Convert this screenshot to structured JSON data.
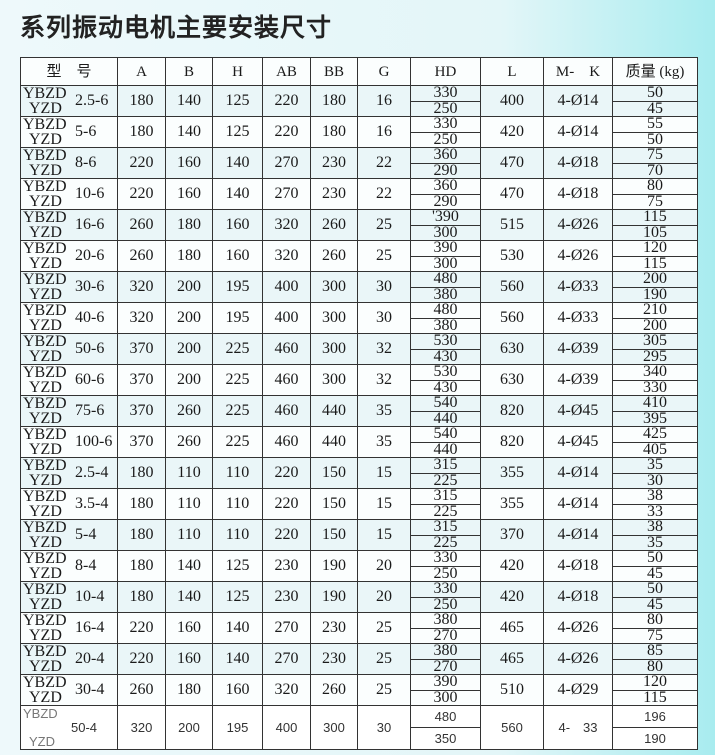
{
  "title": "系列振动电机主要安装尺寸",
  "headers": [
    "型　号",
    "A",
    "B",
    "H",
    "AB",
    "BB",
    "G",
    "HD",
    "L",
    "M-　K",
    "质量 (kg)"
  ],
  "rows": [
    {
      "p1": "YBZD",
      "p2": "YZD",
      "size": "2.5-6",
      "A": "180",
      "B": "140",
      "H": "125",
      "AB": "220",
      "BB": "180",
      "G": "16",
      "HD": [
        "330",
        "250"
      ],
      "L": "400",
      "MK": "4-Ø14",
      "mass": [
        "50",
        "45"
      ]
    },
    {
      "p1": "YBZD",
      "p2": "YZD",
      "size": "5-6",
      "A": "180",
      "B": "140",
      "H": "125",
      "AB": "220",
      "BB": "180",
      "G": "16",
      "HD": [
        "330",
        "250"
      ],
      "L": "420",
      "MK": "4-Ø14",
      "mass": [
        "55",
        "50"
      ]
    },
    {
      "p1": "YBZD",
      "p2": "YZD",
      "size": "8-6",
      "A": "220",
      "B": "160",
      "H": "140",
      "AB": "270",
      "BB": "230",
      "G": "22",
      "HD": [
        "360",
        "290"
      ],
      "L": "470",
      "MK": "4-Ø18",
      "mass": [
        "75",
        "70"
      ]
    },
    {
      "p1": "YBZD",
      "p2": "YZD",
      "size": "10-6",
      "A": "220",
      "B": "160",
      "H": "140",
      "AB": "270",
      "BB": "230",
      "G": "22",
      "HD": [
        "360",
        "290"
      ],
      "L": "470",
      "MK": "4-Ø18",
      "mass": [
        "80",
        "75"
      ]
    },
    {
      "p1": "YBZD",
      "p2": "YZD",
      "size": "16-6",
      "A": "260",
      "B": "180",
      "H": "160",
      "AB": "320",
      "BB": "260",
      "G": "25",
      "HD": [
        "'390",
        "300"
      ],
      "L": "515",
      "MK": "4-Ø26",
      "mass": [
        "115",
        "105"
      ]
    },
    {
      "p1": "YBZD",
      "p2": "YZD",
      "size": "20-6",
      "A": "260",
      "B": "180",
      "H": "160",
      "AB": "320",
      "BB": "260",
      "G": "25",
      "HD": [
        "390",
        "300"
      ],
      "L": "530",
      "MK": "4-Ø26",
      "mass": [
        "120",
        "115"
      ]
    },
    {
      "p1": "YBZD",
      "p2": "YZD",
      "size": "30-6",
      "A": "320",
      "B": "200",
      "H": "195",
      "AB": "400",
      "BB": "300",
      "G": "30",
      "HD": [
        "480",
        "380"
      ],
      "L": "560",
      "MK": "4-Ø33",
      "mass": [
        "200",
        "190"
      ]
    },
    {
      "p1": "YBZD",
      "p2": "YZD",
      "size": "40-6",
      "A": "320",
      "B": "200",
      "H": "195",
      "AB": "400",
      "BB": "300",
      "G": "30",
      "HD": [
        "480",
        "380"
      ],
      "L": "560",
      "MK": "4-Ø33",
      "mass": [
        "210",
        "200"
      ]
    },
    {
      "p1": "YBZD",
      "p2": "YZD",
      "size": "50-6",
      "A": "370",
      "B": "200",
      "H": "225",
      "AB": "460",
      "BB": "300",
      "G": "32",
      "HD": [
        "530",
        "430"
      ],
      "L": "630",
      "MK": "4-Ø39",
      "mass": [
        "305",
        "295"
      ]
    },
    {
      "p1": "YBZD",
      "p2": "YZD",
      "size": "60-6",
      "A": "370",
      "B": "200",
      "H": "225",
      "AB": "460",
      "BB": "300",
      "G": "32",
      "HD": [
        "530",
        "430"
      ],
      "L": "630",
      "MK": "4-Ø39",
      "mass": [
        "340",
        "330"
      ]
    },
    {
      "p1": "YBZD",
      "p2": "YZD",
      "size": "75-6",
      "A": "370",
      "B": "260",
      "H": "225",
      "AB": "460",
      "BB": "440",
      "G": "35",
      "HD": [
        "540",
        "440"
      ],
      "L": "820",
      "MK": "4-Ø45",
      "mass": [
        "410",
        "395"
      ]
    },
    {
      "p1": "YBZD",
      "p2": "YZD",
      "size": "100-6",
      "A": "370",
      "B": "260",
      "H": "225",
      "AB": "460",
      "BB": "440",
      "G": "35",
      "HD": [
        "540",
        "440"
      ],
      "L": "820",
      "MK": "4-Ø45",
      "mass": [
        "425",
        "405"
      ]
    },
    {
      "p1": "YBZD",
      "p2": "YZD",
      "size": "2.5-4",
      "A": "180",
      "B": "110",
      "H": "110",
      "AB": "220",
      "BB": "150",
      "G": "15",
      "HD": [
        "315",
        "225"
      ],
      "L": "355",
      "MK": "4-Ø14",
      "mass": [
        "35",
        "30"
      ]
    },
    {
      "p1": "YBZD",
      "p2": "YZD",
      "size": "3.5-4",
      "A": "180",
      "B": "110",
      "H": "110",
      "AB": "220",
      "BB": "150",
      "G": "15",
      "HD": [
        "315",
        "225"
      ],
      "L": "355",
      "MK": "4-Ø14",
      "mass": [
        "38",
        "33"
      ]
    },
    {
      "p1": "YBZD",
      "p2": "YZD",
      "size": "5-4",
      "A": "180",
      "B": "110",
      "H": "110",
      "AB": "220",
      "BB": "150",
      "G": "15",
      "HD": [
        "315",
        "225"
      ],
      "L": "370",
      "MK": "4-Ø14",
      "mass": [
        "38",
        "35"
      ]
    },
    {
      "p1": "YBZD",
      "p2": "YZD",
      "size": "8-4",
      "A": "180",
      "B": "140",
      "H": "125",
      "AB": "230",
      "BB": "190",
      "G": "20",
      "HD": [
        "330",
        "250"
      ],
      "L": "420",
      "MK": "4-Ø18",
      "mass": [
        "50",
        "45"
      ]
    },
    {
      "p1": "YBZD",
      "p2": "YZD",
      "size": "10-4",
      "A": "180",
      "B": "140",
      "H": "125",
      "AB": "230",
      "BB": "190",
      "G": "20",
      "HD": [
        "330",
        "250"
      ],
      "L": "420",
      "MK": "4-Ø18",
      "mass": [
        "50",
        "45"
      ]
    },
    {
      "p1": "YBZD",
      "p2": "YZD",
      "size": "16-4",
      "A": "220",
      "B": "160",
      "H": "140",
      "AB": "270",
      "BB": "230",
      "G": "25",
      "HD": [
        "380",
        "270"
      ],
      "L": "465",
      "MK": "4-Ø26",
      "mass": [
        "80",
        "75"
      ]
    },
    {
      "p1": "YBZD",
      "p2": "YZD",
      "size": "20-4",
      "A": "220",
      "B": "160",
      "H": "140",
      "AB": "270",
      "BB": "230",
      "G": "25",
      "HD": [
        "380",
        "270"
      ],
      "L": "465",
      "MK": "4-Ø26",
      "mass": [
        "85",
        "80"
      ]
    },
    {
      "p1": "YBZD",
      "p2": "YZD",
      "size": "30-4",
      "A": "260",
      "B": "180",
      "H": "160",
      "AB": "320",
      "BB": "260",
      "G": "25",
      "HD": [
        "390",
        "300"
      ],
      "L": "510",
      "MK": "4-Ø29",
      "mass": [
        "120",
        "115"
      ]
    },
    {
      "p1": "YBZD",
      "p2": "YZD",
      "size": "50-4",
      "A": "320",
      "B": "200",
      "H": "195",
      "AB": "400",
      "BB": "300",
      "G": "30",
      "HD": [
        "480",
        "350"
      ],
      "L": "560",
      "MK": "4-　33",
      "mass": [
        "196",
        "190"
      ]
    }
  ]
}
